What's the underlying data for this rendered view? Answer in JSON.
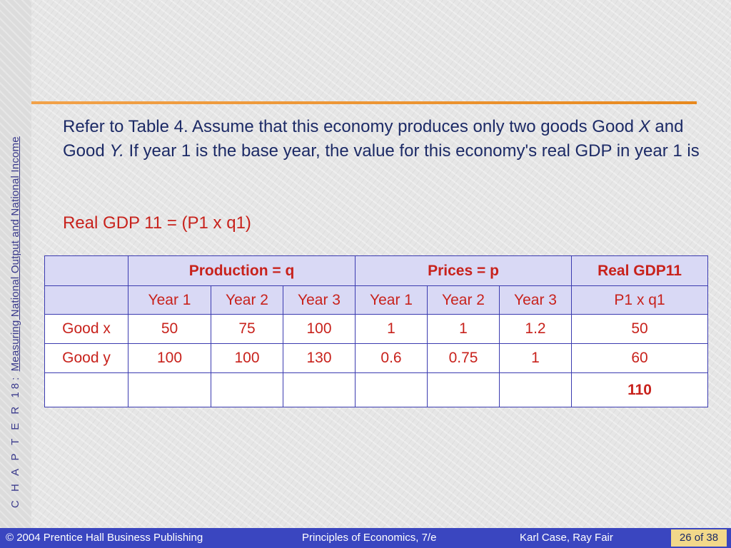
{
  "sidebar": {
    "chapter_label": "C H A P T E R  18:",
    "chapter_title": "Measuring National Output and National Income"
  },
  "question": {
    "part1": "Refer to Table 4. Assume that this economy produces only two goods Good ",
    "good_x": "X",
    "part2": " and Good ",
    "good_y": "Y.",
    "part3": " If year 1 is the base year, the value for this economy's real GDP in year 1 is"
  },
  "formula": "Real GDP 11 = (P1 x q1)",
  "table": {
    "group_headers": {
      "production": "Production = q",
      "prices": "Prices = p",
      "real_gdp": "Real GDP11"
    },
    "year_headers": [
      "Year 1",
      "Year 2",
      "Year 3",
      "Year 1",
      "Year 2",
      "Year 3"
    ],
    "real_gdp_formula": "P1 x q1",
    "rows": [
      {
        "label": "Good x",
        "cells": [
          "50",
          "75",
          "100",
          "1",
          "1",
          "1.2"
        ],
        "real_gdp": "50"
      },
      {
        "label": "Good y",
        "cells": [
          "100",
          "100",
          "130",
          "0.6",
          "0.75",
          "1"
        ],
        "real_gdp": "60"
      }
    ],
    "total": "110"
  },
  "footer": {
    "copyright": "© 2004 Prentice Hall Business Publishing",
    "book": "Principles of Economics, 7/e",
    "authors": "Karl Case, Ray Fair",
    "page": "26 of 38"
  },
  "colors": {
    "title_text": "#1c2a66",
    "accent_red": "#c8221c",
    "table_border": "#3b3bb0",
    "header_fill": "#d9d9f5",
    "footer_bar": "#3a46c0",
    "rule_orange": "#e8891e",
    "page_box": "#f2d88a"
  }
}
